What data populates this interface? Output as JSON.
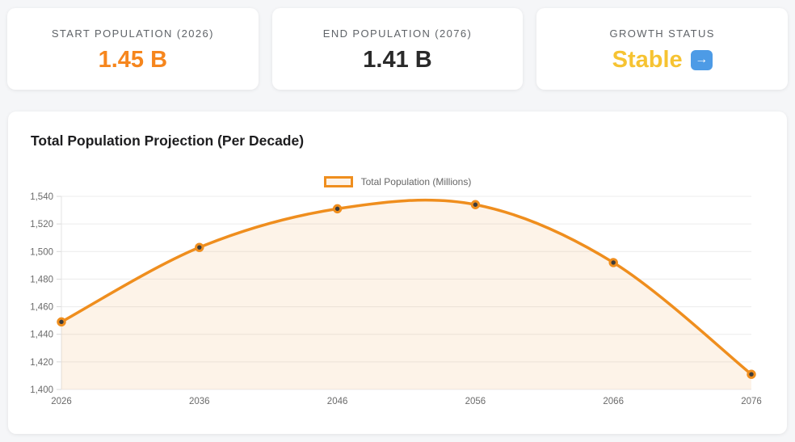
{
  "page": {
    "background": "#f5f6f8"
  },
  "stats": {
    "items": [
      {
        "label": "START POPULATION (2026)",
        "value": "1.45 B",
        "value_color": "#f6861d"
      },
      {
        "label": "END POPULATION (2076)",
        "value": "1.41 B",
        "value_color": "#2a2a2a"
      },
      {
        "label": "GROWTH STATUS",
        "value": "Stable",
        "value_color": "#f6c332",
        "icon": "arrow-right-icon",
        "icon_glyph": "→",
        "icon_bg": "#4d9be6"
      }
    ]
  },
  "chart": {
    "title": "Total Population Projection (Per Decade)",
    "legend_label": "Total Population (Millions)"
  },
  "chart_data": {
    "type": "area",
    "title": "Total Population Projection (Per Decade)",
    "x": [
      "2026",
      "2036",
      "2046",
      "2056",
      "2066",
      "2076"
    ],
    "series": [
      {
        "name": "Total Population (Millions)",
        "values": [
          1449,
          1503,
          1531,
          1534,
          1492,
          1411
        ]
      }
    ],
    "xlabel": "",
    "ylabel": "",
    "ylim": [
      1400,
      1540
    ],
    "ytick_step": 20,
    "grid": true,
    "legend_position": "top-center",
    "line_color": "#ef8e1e",
    "fill_color": "rgba(240,142,30,0.10)",
    "marker_fill": "#3c3c3c",
    "grid_color": "#ececec",
    "tick_color": "#d9d9d9",
    "axis_border_color": "#e3e3e3"
  }
}
